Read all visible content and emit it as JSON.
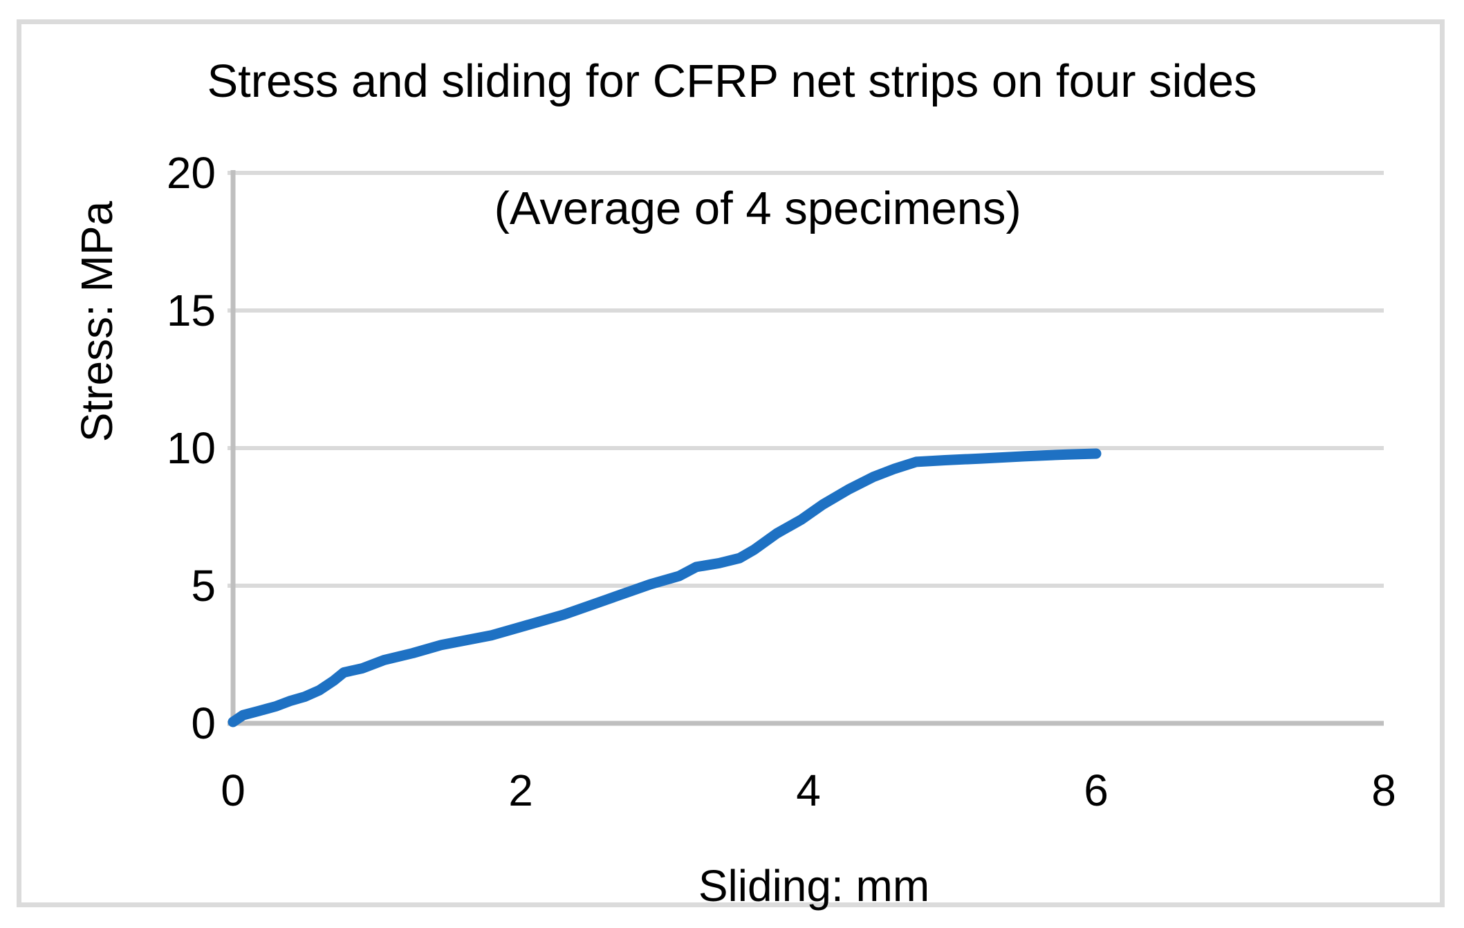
{
  "figure": {
    "title_line1": "Stress and sliding for CFRP net strips on four sides",
    "title_line2": "(Average of 4 specimens)",
    "x_axis_title": "Sliding: mm",
    "y_axis_title": "Stress: MPa",
    "y_tick_labels": [
      "20",
      "15",
      "10",
      "5",
      "0"
    ],
    "x_tick_labels": [
      "0",
      "2",
      "4",
      "6",
      "8"
    ],
    "colors": {
      "line": "#1E71C3",
      "gridline": "#DADADA",
      "axis": "#BFBFBF",
      "border": "#DBDBDB",
      "text": "#000000"
    }
  },
  "chart_data": {
    "type": "line",
    "title": "Stress and sliding for CFRP net strips on four sides (Average of 4 specimens)",
    "xlabel": "Sliding: mm",
    "ylabel": "Stress: MPa",
    "xlim": [
      0,
      8
    ],
    "ylim": [
      0,
      20
    ],
    "xticks": [
      0,
      2,
      4,
      6,
      8
    ],
    "yticks": [
      0,
      5,
      10,
      15,
      20
    ],
    "grid": "horizontal",
    "legend": "none",
    "series": [
      {
        "name": "Average of 4 specimens",
        "points": [
          [
            0,
            0.05
          ],
          [
            0.07,
            0.3
          ],
          [
            0.18,
            0.45
          ],
          [
            0.3,
            0.62
          ],
          [
            0.4,
            0.82
          ],
          [
            0.5,
            0.97
          ],
          [
            0.6,
            1.2
          ],
          [
            0.7,
            1.55
          ],
          [
            0.77,
            1.85
          ],
          [
            0.9,
            2.0
          ],
          [
            1.05,
            2.3
          ],
          [
            1.25,
            2.55
          ],
          [
            1.45,
            2.85
          ],
          [
            1.6,
            3.0
          ],
          [
            1.8,
            3.2
          ],
          [
            2.0,
            3.5
          ],
          [
            2.3,
            3.95
          ],
          [
            2.6,
            4.5
          ],
          [
            2.9,
            5.05
          ],
          [
            3.1,
            5.35
          ],
          [
            3.22,
            5.68
          ],
          [
            3.38,
            5.82
          ],
          [
            3.52,
            6.0
          ],
          [
            3.62,
            6.3
          ],
          [
            3.78,
            6.9
          ],
          [
            3.95,
            7.4
          ],
          [
            4.1,
            7.95
          ],
          [
            4.28,
            8.5
          ],
          [
            4.45,
            8.95
          ],
          [
            4.6,
            9.25
          ],
          [
            4.75,
            9.5
          ],
          [
            4.95,
            9.56
          ],
          [
            5.2,
            9.62
          ],
          [
            5.5,
            9.7
          ],
          [
            5.8,
            9.77
          ],
          [
            6.0,
            9.8
          ]
        ]
      }
    ]
  }
}
